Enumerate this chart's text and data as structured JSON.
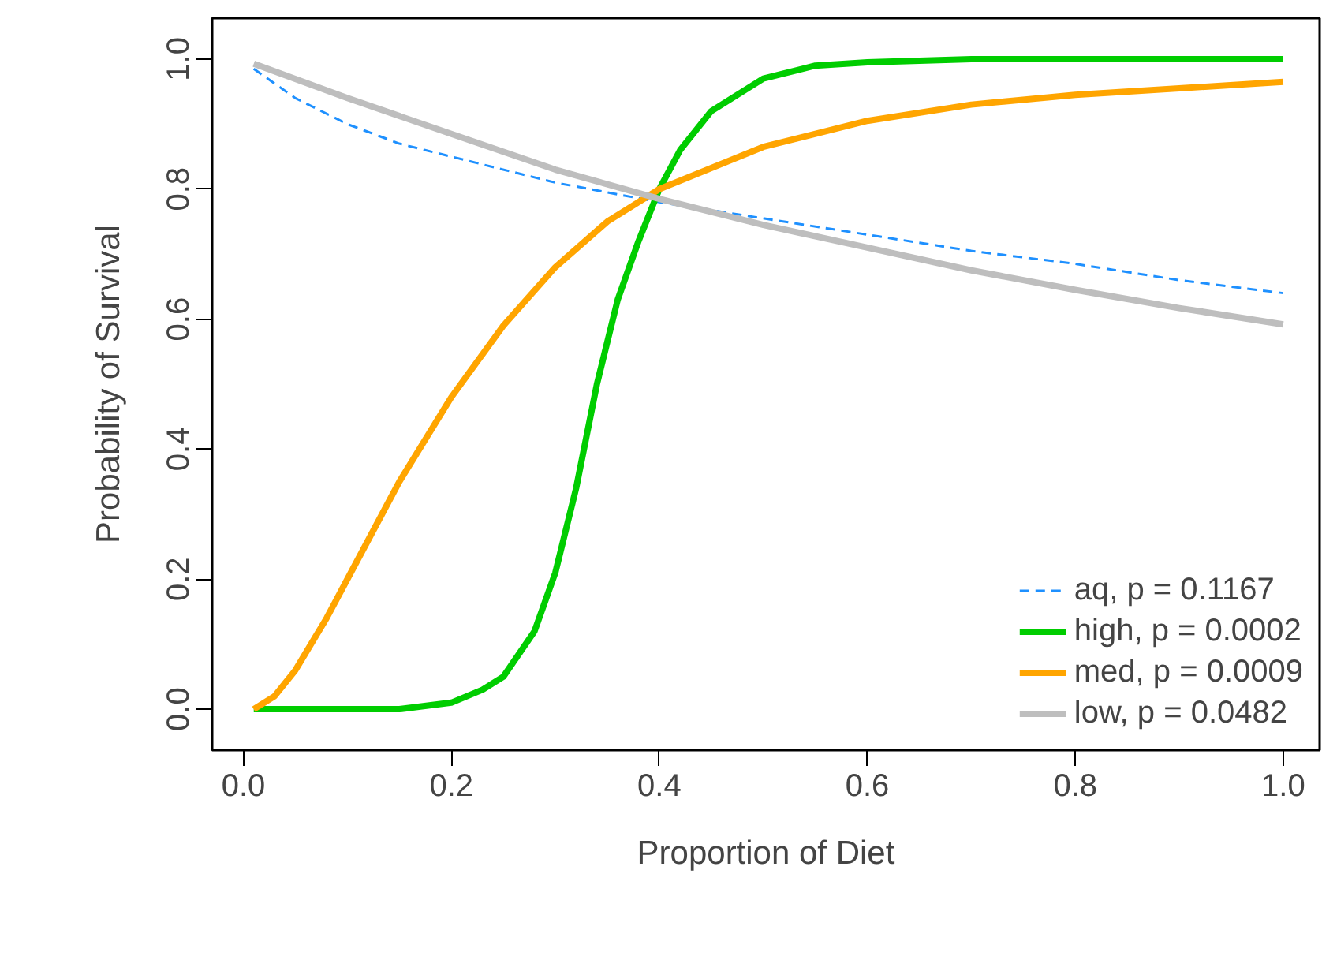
{
  "chart_data": {
    "type": "line",
    "xlabel": "Proportion of Diet",
    "ylabel": "Probability of Survival",
    "xlim": [
      -0.03,
      1.035
    ],
    "ylim": [
      -0.063,
      1.063
    ],
    "xticks": [
      {
        "value": 0,
        "label": "0.0"
      },
      0.2,
      0.4,
      0.6,
      0.8,
      {
        "value": 1,
        "label": "1.0"
      }
    ],
    "yticks": [
      {
        "value": 0,
        "label": "0.0"
      },
      0.2,
      0.4,
      0.6,
      0.8,
      {
        "value": 1,
        "label": "1.0"
      }
    ],
    "grid": false,
    "legend": "bottom right",
    "series": [
      {
        "name": "aq, p = 0.1167",
        "color": "#1e90ff",
        "line_style": "dashed",
        "x": [
          0.01,
          0.05,
          0.1,
          0.15,
          0.2,
          0.3,
          0.4,
          0.5,
          0.6,
          0.7,
          0.8,
          0.9,
          1.0
        ],
        "values": [
          0.985,
          0.94,
          0.9,
          0.87,
          0.85,
          0.81,
          0.78,
          0.755,
          0.73,
          0.705,
          0.685,
          0.66,
          0.64
        ]
      },
      {
        "name": "high, p = 0.0002",
        "color": "#00cd00",
        "line_style": "solid",
        "x": [
          0.01,
          0.1,
          0.15,
          0.2,
          0.23,
          0.25,
          0.28,
          0.3,
          0.32,
          0.34,
          0.36,
          0.38,
          0.4,
          0.42,
          0.45,
          0.5,
          0.55,
          0.6,
          0.7,
          0.8,
          1.0
        ],
        "values": [
          0.0,
          0.0,
          0.0,
          0.01,
          0.03,
          0.05,
          0.12,
          0.21,
          0.34,
          0.5,
          0.63,
          0.72,
          0.8,
          0.86,
          0.92,
          0.97,
          0.99,
          0.995,
          1.0,
          1.0,
          1.0
        ]
      },
      {
        "name": "med, p = 0.0009",
        "color": "#ffa500",
        "line_style": "solid",
        "x": [
          0.01,
          0.03,
          0.05,
          0.08,
          0.1,
          0.15,
          0.2,
          0.25,
          0.3,
          0.35,
          0.4,
          0.5,
          0.6,
          0.7,
          0.8,
          0.9,
          1.0
        ],
        "values": [
          0.0,
          0.02,
          0.06,
          0.14,
          0.2,
          0.35,
          0.48,
          0.59,
          0.68,
          0.75,
          0.8,
          0.865,
          0.905,
          0.93,
          0.945,
          0.955,
          0.965
        ]
      },
      {
        "name": "low, p = 0.0482",
        "color": "#bebebe",
        "line_style": "solid",
        "x": [
          0.01,
          0.1,
          0.2,
          0.3,
          0.4,
          0.5,
          0.6,
          0.7,
          0.8,
          0.9,
          1.0
        ],
        "values": [
          0.993,
          0.94,
          0.885,
          0.83,
          0.785,
          0.745,
          0.71,
          0.675,
          0.645,
          0.617,
          0.592
        ]
      }
    ]
  }
}
